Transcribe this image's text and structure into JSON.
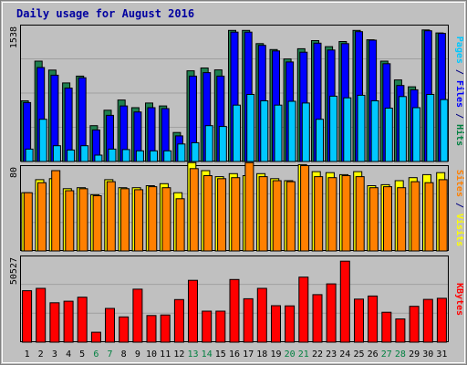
{
  "chart_data": {
    "type": "bar",
    "title": "Daily usage for August 2016",
    "categories": [
      "1",
      "2",
      "3",
      "4",
      "5",
      "6",
      "7",
      "8",
      "9",
      "10",
      "11",
      "12",
      "13",
      "14",
      "15",
      "16",
      "17",
      "18",
      "19",
      "20",
      "21",
      "22",
      "23",
      "24",
      "25",
      "26",
      "27",
      "28",
      "29",
      "30",
      "31"
    ],
    "weekend_days": [
      "6",
      "7",
      "13",
      "14",
      "20",
      "21",
      "27",
      "28"
    ],
    "panels": [
      {
        "id": "pages-files-hits",
        "ymax": 1538,
        "ymax_label": "1538",
        "axis_label_parts": [
          {
            "text": "Pages",
            "color": "#00c8ff"
          },
          {
            "text": " / ",
            "color": "#000080"
          },
          {
            "text": "Files",
            "color": "#0000ff"
          },
          {
            "text": " / ",
            "color": "#000080"
          },
          {
            "text": "Hits",
            "color": "#008040"
          }
        ],
        "series": [
          {
            "name": "Hits",
            "color": "#208050",
            "values": [
              710,
              1175,
              1070,
              920,
              1000,
              420,
              600,
              720,
              630,
              685,
              650,
              340,
              1062,
              1095,
              1072,
              1535,
              1535,
              1380,
              1310,
              1200,
              1320,
              1415,
              1345,
              1405,
              1535,
              1425,
              1175,
              955,
              875,
              1540,
              1505
            ]
          },
          {
            "name": "Files",
            "color": "#0000ff",
            "values": [
              690,
              1100,
              1010,
              860,
              980,
              370,
              540,
              650,
              580,
              630,
              620,
              300,
              1000,
              1040,
              1000,
              1515,
              1515,
              1360,
              1295,
              1165,
              1280,
              1385,
              1305,
              1380,
              1520,
              1420,
              1145,
              890,
              840,
              1530,
              1500
            ]
          },
          {
            "name": "Pages",
            "color": "#00c8ff",
            "values": [
              145,
              495,
              185,
              135,
              185,
              75,
              145,
              140,
              125,
              125,
              125,
              205,
              220,
              420,
              410,
              660,
              785,
              710,
              660,
              705,
              685,
              495,
              765,
              745,
              775,
              710,
              625,
              760,
              630,
              785,
              725
            ]
          }
        ]
      },
      {
        "id": "sites-visits",
        "ymax": 80,
        "ymax_label": "80",
        "axis_label_parts": [
          {
            "text": "Sites",
            "color": "#ff8000"
          },
          {
            "text": " / ",
            "color": "#000080"
          },
          {
            "text": "Visits",
            "color": "#ffff00"
          }
        ],
        "series": [
          {
            "name": "Visits",
            "color": "#ffff00",
            "values": [
              58,
              71,
              72,
              62,
              63,
              56,
              71,
              63,
              63,
              65,
              67,
              58,
              88,
              80,
              74,
              77,
              75,
              77,
              72,
              70,
              86,
              79,
              78,
              76,
              79,
              65,
              66,
              70,
              73,
              76,
              78
            ]
          },
          {
            "name": "Sites",
            "color": "#ff8000",
            "values": [
              58,
              68,
              80,
              60,
              62,
              55,
              69,
              62,
              61,
              64,
              63,
              52,
              82,
              75,
              72,
              73,
              88,
              74,
              70,
              69,
              85,
              74,
              73,
              75,
              74,
              63,
              64,
              63,
              69,
              68,
              71
            ]
          }
        ]
      },
      {
        "id": "kbytes",
        "ymax": 50527,
        "ymax_label": "50527",
        "axis_label_parts": [
          {
            "text": "KBytes",
            "color": "#ff0000"
          }
        ],
        "series": [
          {
            "name": "KBytes",
            "color": "#ff0000",
            "values": [
              32000,
              33500,
              24500,
              25500,
              28000,
              6200,
              21000,
              15700,
              33000,
              16600,
              16900,
              26500,
              38500,
              19300,
              19300,
              39000,
              27000,
              33500,
              22700,
              22600,
              40500,
              29600,
              36300,
              50400,
              26800,
              28700,
              18600,
              14500,
              22300,
              26600,
              27300
            ]
          }
        ]
      }
    ]
  }
}
